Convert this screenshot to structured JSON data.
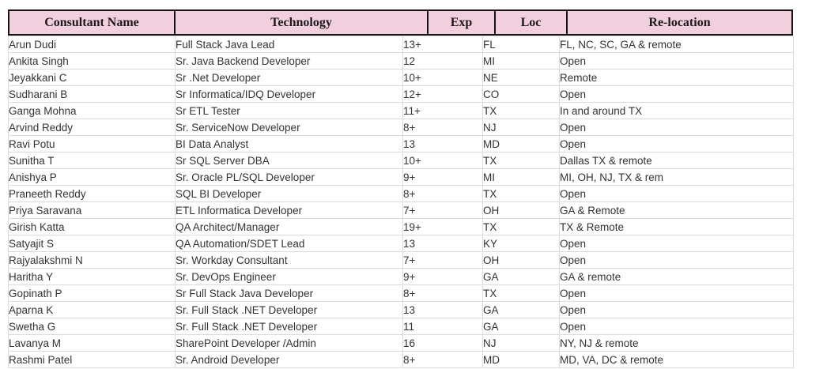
{
  "table": {
    "headers": [
      "Consultant Name",
      "Technology",
      "Exp",
      "Loc",
      "Re-location"
    ],
    "row_keys": [
      "name",
      "technology",
      "exp",
      "loc",
      "relocation"
    ],
    "rows": [
      {
        "name": "Arun Dudi",
        "technology": "Full Stack Java Lead",
        "exp": "13+",
        "loc": "FL",
        "relocation": "FL, NC, SC, GA & remote"
      },
      {
        "name": "Ankita Singh",
        "technology": "Sr. Java Backend Developer",
        "exp": "12",
        "loc": "MI",
        "relocation": "Open"
      },
      {
        "name": "Jeyakkani C",
        "technology": "Sr .Net Developer",
        "exp": "10+",
        "loc": "NE",
        "relocation": "Remote"
      },
      {
        "name": "Sudharani B",
        "technology": "Sr Informatica/IDQ Developer",
        "exp": "12+",
        "loc": "CO",
        "relocation": "Open"
      },
      {
        "name": "Ganga Mohna",
        "technology": "Sr ETL Tester",
        "exp": "11+",
        "loc": "TX",
        "relocation": "In and around TX"
      },
      {
        "name": "Arvind Reddy",
        "technology": "Sr. ServiceNow Developer",
        "exp": "8+",
        "loc": "NJ",
        "relocation": "Open"
      },
      {
        "name": "Ravi Potu",
        "technology": "BI Data Analyst",
        "exp": "13",
        "loc": "MD",
        "relocation": "Open"
      },
      {
        "name": "Sunitha T",
        "technology": "Sr SQL Server DBA",
        "exp": "10+",
        "loc": "TX",
        "relocation": "Dallas TX & remote"
      },
      {
        "name": "Anishya P",
        "technology": "Sr. Oracle PL/SQL Developer",
        "exp": "9+",
        "loc": "MI",
        "relocation": "MI, OH, NJ, TX & rem"
      },
      {
        "name": "Praneeth Reddy",
        "technology": "SQL BI Developer",
        "exp": "8+",
        "loc": "TX",
        "relocation": "Open"
      },
      {
        "name": "Priya Saravana",
        "technology": "ETL Informatica Developer",
        "exp": "7+",
        "loc": "OH",
        "relocation": "GA & Remote"
      },
      {
        "name": "Girish Katta",
        "technology": "QA Architect/Manager",
        "exp": "19+",
        "loc": "TX",
        "relocation": "TX & Remote"
      },
      {
        "name": "Satyajit S",
        "technology": "QA Automation/SDET Lead",
        "exp": "13",
        "loc": "KY",
        "relocation": "Open"
      },
      {
        "name": "Rajyalakshmi N",
        "technology": "Sr. Workday Consultant",
        "exp": "7+",
        "loc": "OH",
        "relocation": "Open"
      },
      {
        "name": "Haritha Y",
        "technology": "Sr. DevOps Engineer",
        "exp": "9+",
        "loc": "GA",
        "relocation": "GA & remote"
      },
      {
        "name": "Gopinath P",
        "technology": "Sr Full Stack Java Developer",
        "exp": "8+",
        "loc": "TX",
        "relocation": "Open"
      },
      {
        "name": "Aparna K",
        "technology": "Sr. Full Stack .NET Developer",
        "exp": "13",
        "loc": "GA",
        "relocation": "Open"
      },
      {
        "name": "Swetha G",
        "technology": "Sr. Full Stack .NET Developer",
        "exp": "11",
        "loc": "GA",
        "relocation": "Open"
      },
      {
        "name": "Lavanya M",
        "technology": "SharePoint Developer /Admin",
        "exp": "16",
        "loc": "NJ",
        "relocation": "NY, NJ & remote"
      },
      {
        "name": "Rashmi Patel",
        "technology": "Sr. Android Developer",
        "exp": "8+",
        "loc": "MD",
        "relocation": "MD, VA, DC & remote"
      }
    ],
    "colors": {
      "header_bg": "#f2cfdc",
      "header_border": "#141414",
      "body_grid": "#dcdcdc",
      "body_text": "#333333"
    }
  }
}
